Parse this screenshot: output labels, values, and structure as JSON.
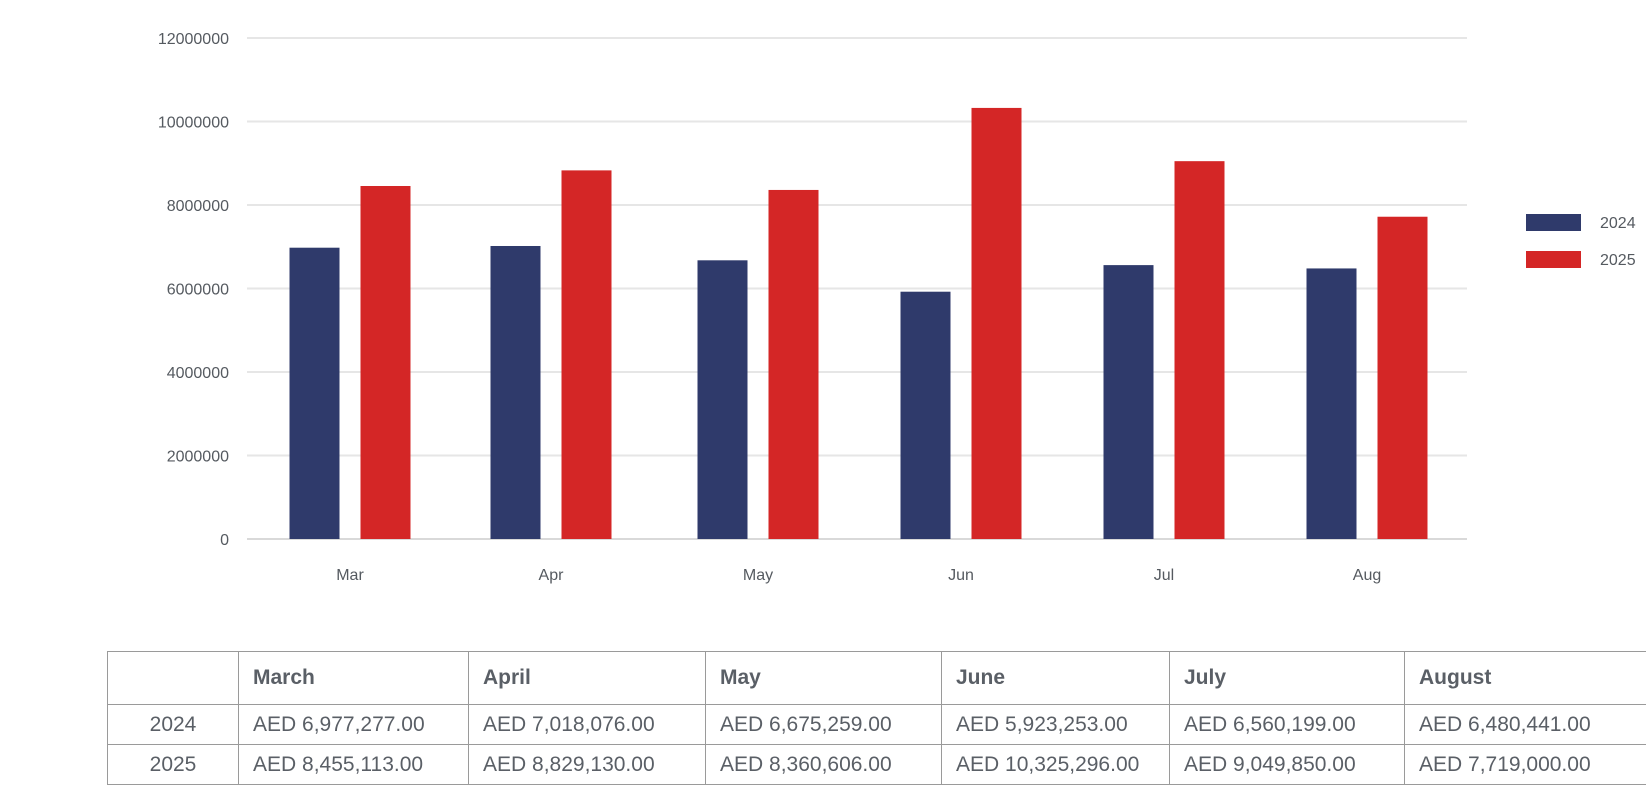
{
  "chart_data": {
    "type": "bar",
    "categories": [
      "Mar",
      "Apr",
      "May",
      "Jun",
      "Jul",
      "Aug"
    ],
    "series": [
      {
        "name": "2024",
        "color": "#2f3a6b",
        "values": [
          6977277,
          7018076,
          6675259,
          5923253,
          6560199,
          6480441
        ]
      },
      {
        "name": "2025",
        "color": "#d42626",
        "values": [
          8455113,
          8829130,
          8360606,
          10325296,
          9049850,
          7719000
        ]
      }
    ],
    "title": "",
    "xlabel": "",
    "ylabel": "",
    "ylim": [
      0,
      12000000
    ],
    "yticks": [
      "0",
      "2000000",
      "4000000",
      "6000000",
      "8000000",
      "10000000",
      "12000000"
    ],
    "grid": true,
    "legend_position": "right"
  },
  "table": {
    "headers": [
      "",
      "March",
      "April",
      "May",
      "June",
      "July",
      "August"
    ],
    "rows": [
      {
        "label": "2024",
        "cells": [
          "AED 6,977,277.00",
          "AED 7,018,076.00",
          "AED 6,675,259.00",
          "AED 5,923,253.00",
          "AED 6,560,199.00",
          "AED 6,480,441.00"
        ]
      },
      {
        "label": "2025",
        "cells": [
          "AED 8,455,113.00",
          "AED 8,829,130.00",
          "AED 8,360,606.00",
          "AED 10,325,296.00",
          "AED 9,049,850.00",
          "AED 7,719,000.00"
        ]
      }
    ]
  }
}
